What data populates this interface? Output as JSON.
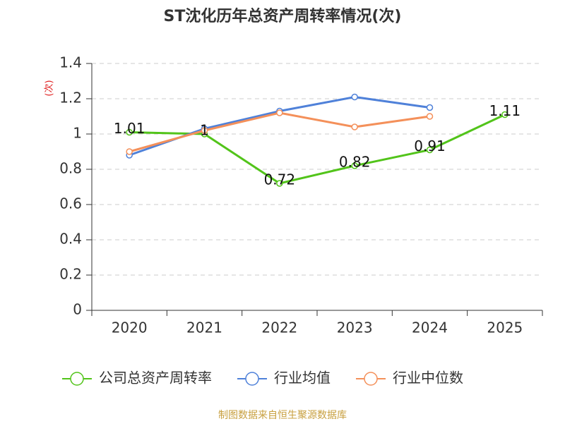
{
  "chart_data": {
    "type": "line",
    "title": "ST沈化历年总资产周转率情况(次)",
    "y_label": "(次)",
    "categories": [
      "2020",
      "2021",
      "2022",
      "2023",
      "2024",
      "2025"
    ],
    "series": [
      {
        "name": "公司总资产周转率",
        "color": "#52c41a",
        "values": [
          1.01,
          1,
          0.72,
          0.82,
          0.91,
          1.11
        ],
        "show_labels": true
      },
      {
        "name": "行业均值",
        "color": "#4f81d9",
        "values": [
          0.88,
          1.03,
          1.13,
          1.21,
          1.15,
          null
        ]
      },
      {
        "name": "行业中位数",
        "color": "#f4905a",
        "values": [
          0.9,
          1.02,
          1.12,
          1.04,
          1.1,
          null
        ]
      }
    ],
    "ylim": [
      0,
      1.4
    ],
    "yticks": [
      0,
      0.2,
      0.4,
      0.6,
      0.8,
      1,
      1.2,
      1.4
    ],
    "grid": true,
    "legend": "bottom",
    "source": "制图数据来自恒生聚源数据库"
  }
}
